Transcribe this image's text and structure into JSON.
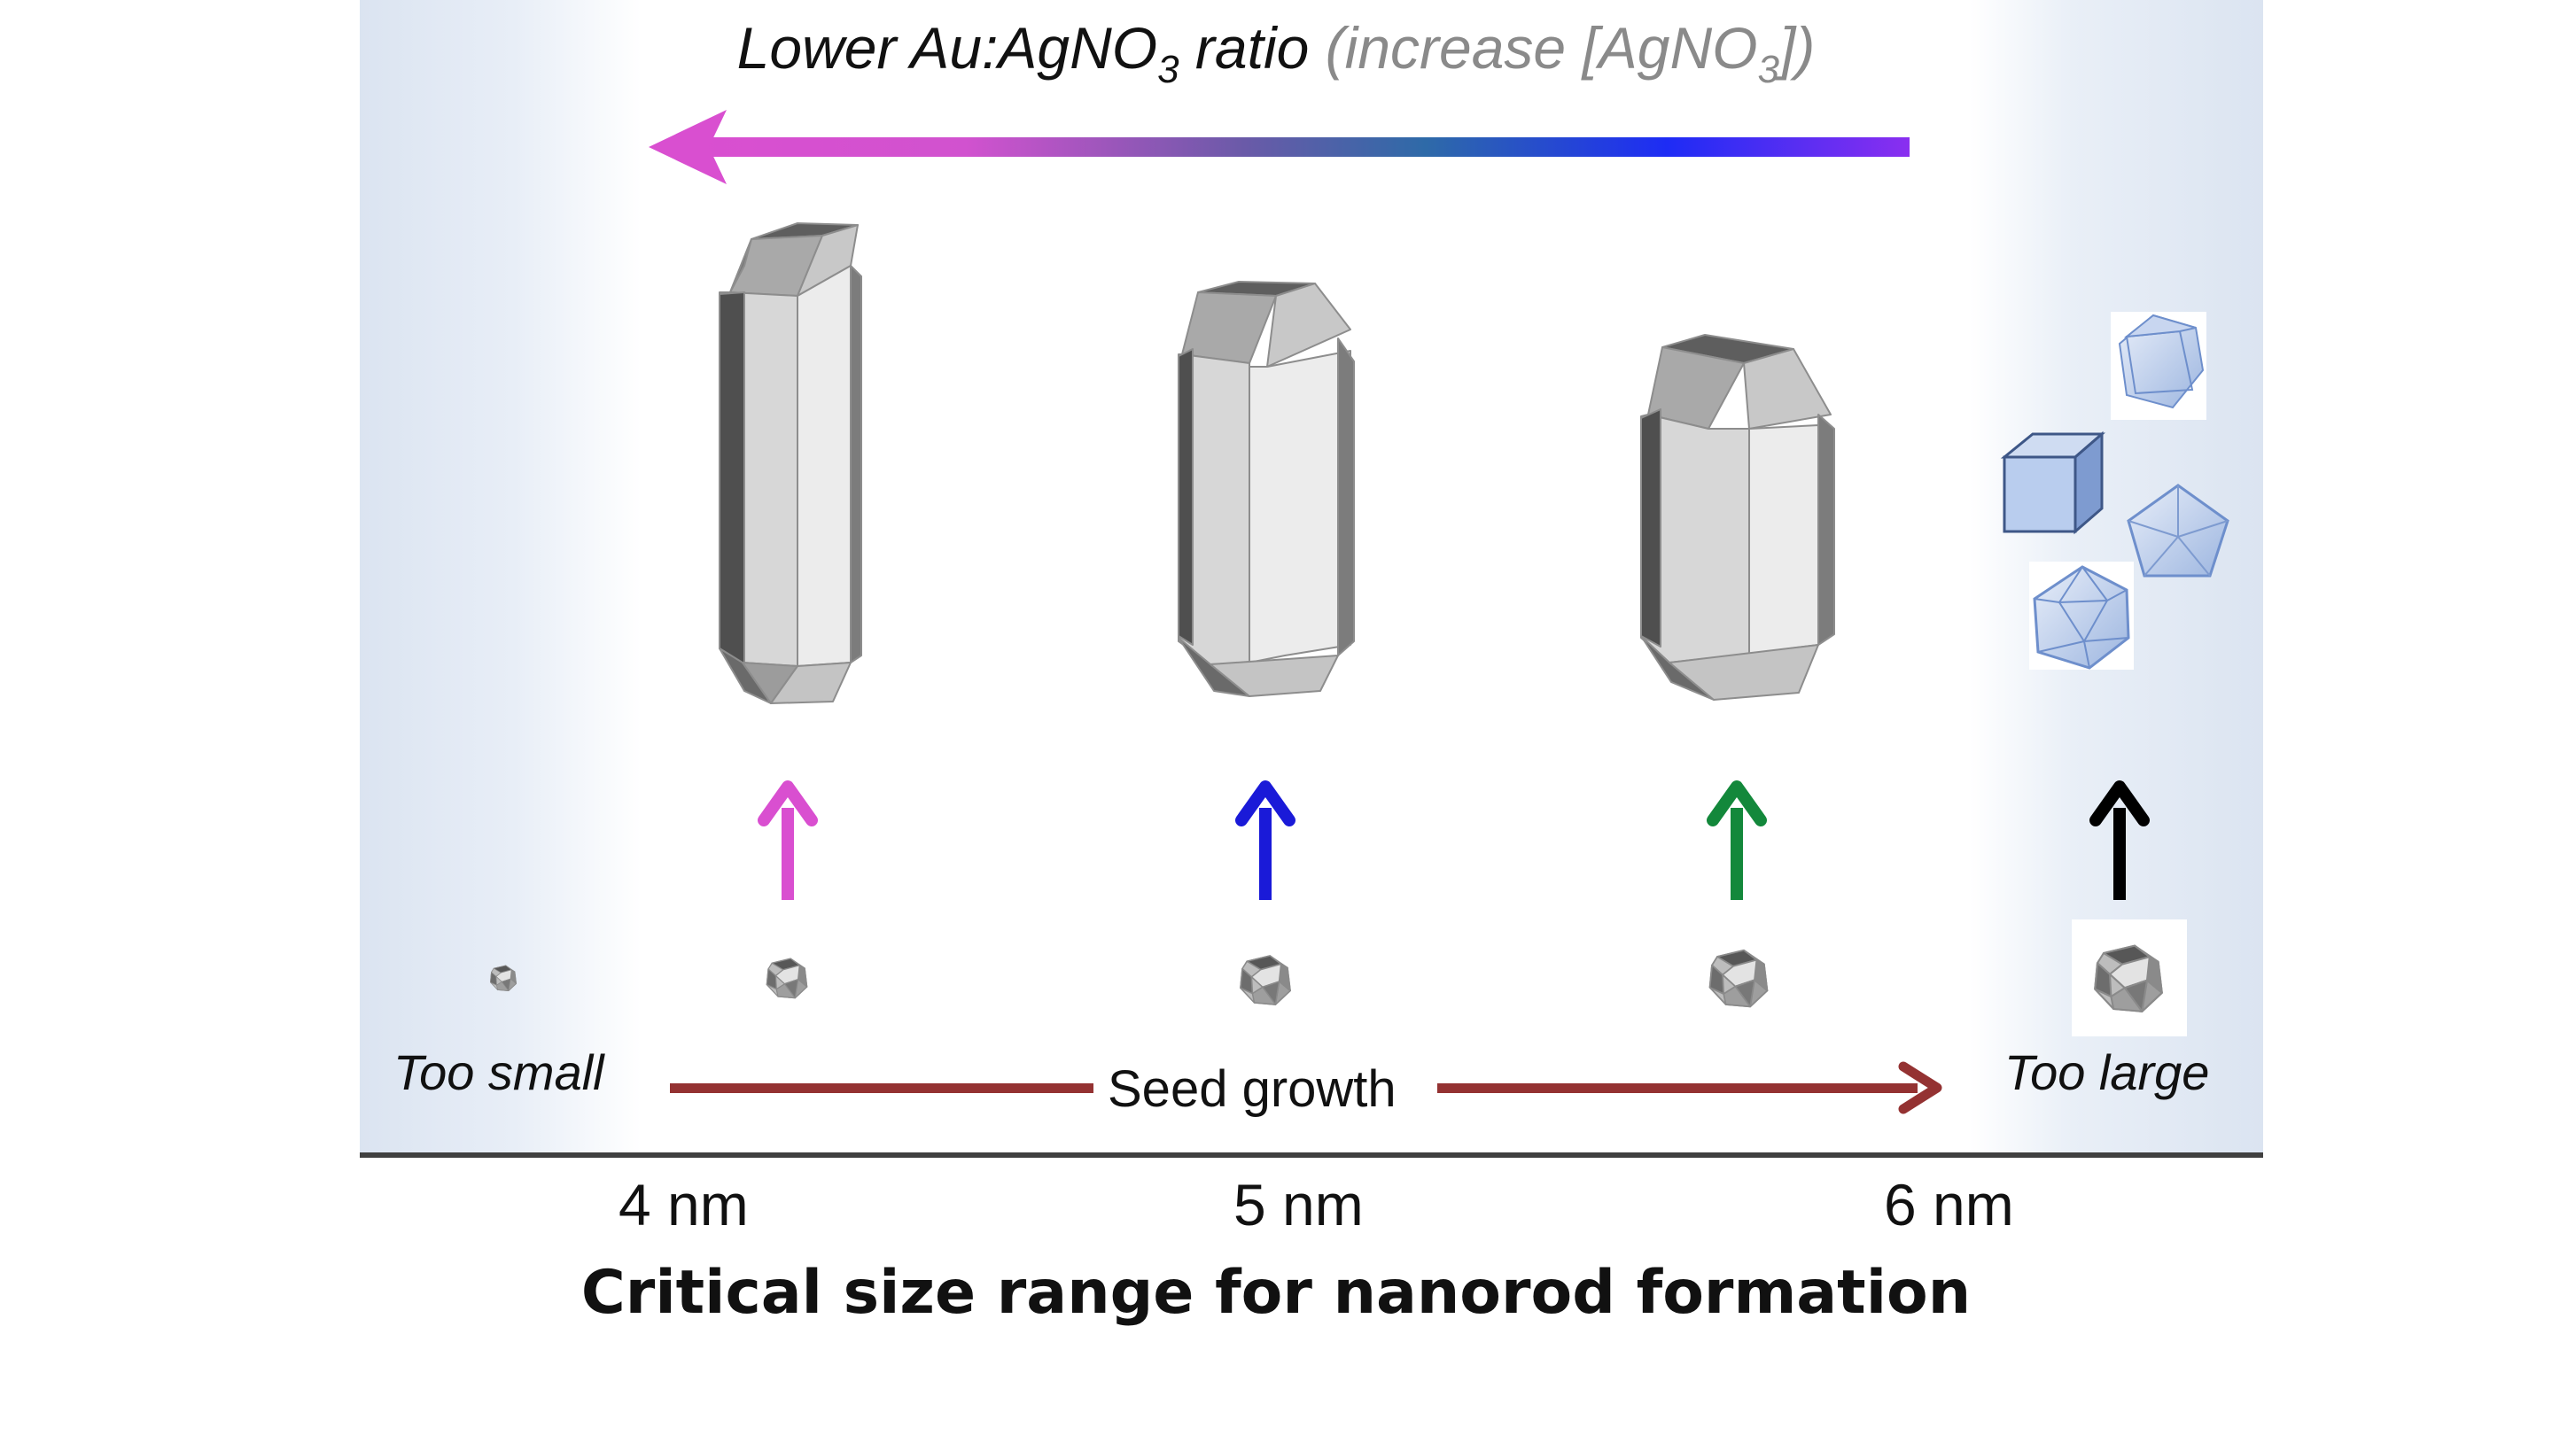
{
  "title": {
    "prefix": "Lower Au:AgNO",
    "prefix_sub": "3",
    "ratio_word": " ratio ",
    "muted_prefix": "(increase [AgNO",
    "muted_sub": "3",
    "muted_suffix": "])"
  },
  "labels": {
    "too_small": "Too small",
    "seed_growth": "Seed growth",
    "too_large": "Too large"
  },
  "axis": {
    "ticks": [
      "4 nm",
      "5 nm",
      "6 nm"
    ],
    "title": "Critical size range for nanorod formation"
  },
  "colors": {
    "arrow_magenta": "#d94fd0",
    "arrow_blue": "#1a1ad8",
    "arrow_green": "#13883b",
    "arrow_black": "#000000",
    "seed_growth_arrow": "#943232",
    "background_blue": "#dde6f2",
    "gradient": [
      "#d94fd0",
      "#2e6aa8",
      "#1e2cf5",
      "#7b2ff0"
    ]
  },
  "icons": [
    "nanorod-long",
    "nanorod-medium",
    "nanorod-short",
    "seed-crystal",
    "cube",
    "decahedron",
    "icosahedron",
    "cuboctahedron-cage"
  ]
}
